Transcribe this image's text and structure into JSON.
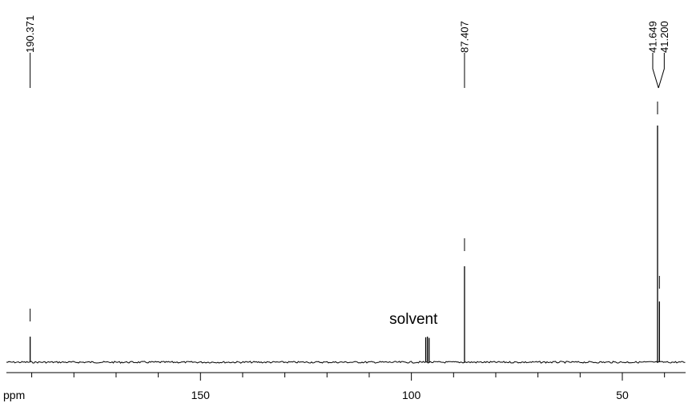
{
  "chart_data": {
    "type": "line",
    "title": "",
    "xlabel": "ppm",
    "ylabel": "",
    "xlim": [
      196,
      35
    ],
    "x_ticks": [
      150,
      100,
      50
    ],
    "x_tick_labels": [
      "150",
      "100",
      "50"
    ],
    "peaks": [
      {
        "ppm": 190.371,
        "label": "190.371",
        "intensity": 0.08
      },
      {
        "ppm": 87.407,
        "label": "87.407",
        "intensity": 0.3
      },
      {
        "ppm": 41.649,
        "label": "41.649",
        "intensity": 0.74
      },
      {
        "ppm": 41.2,
        "label": "41.200",
        "intensity": 0.19
      }
    ],
    "solvent_peaks": [
      {
        "ppm": 96.6,
        "intensity": 0.078
      },
      {
        "ppm": 96.2,
        "intensity": 0.08
      },
      {
        "ppm": 95.8,
        "intensity": 0.076
      }
    ],
    "annotations": [
      {
        "text": "solvent",
        "ppm": 99.5
      }
    ],
    "color": "#000000"
  }
}
